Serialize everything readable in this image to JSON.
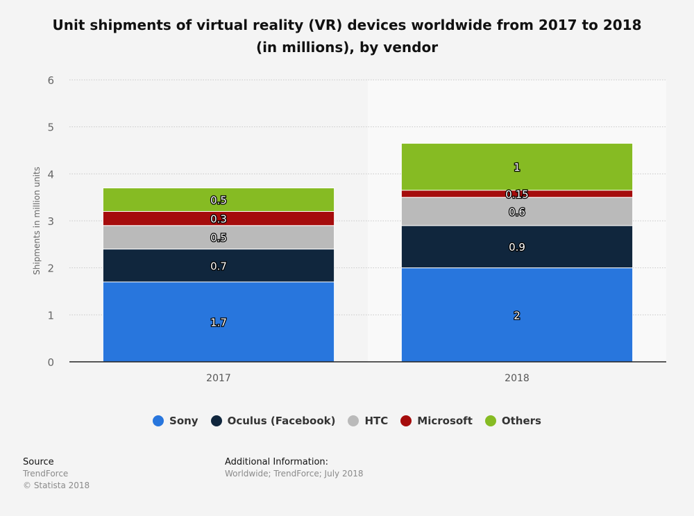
{
  "title": "Unit shipments of virtual reality (VR) devices worldwide from 2017 to 2018 (in millions), by vendor",
  "chart_data": {
    "type": "bar",
    "stacked": true,
    "title": "Unit shipments of virtual reality (VR) devices worldwide from 2017 to 2018 (in millions), by vendor",
    "xlabel": "",
    "ylabel": "Shipments in million units",
    "ylim": [
      0,
      6
    ],
    "yticks": [
      0,
      1,
      2,
      3,
      4,
      5,
      6
    ],
    "grid": true,
    "legend_position": "bottom",
    "categories": [
      "2017",
      "2018"
    ],
    "series": [
      {
        "name": "Sony",
        "color": "#2876dd",
        "values": [
          1.7,
          2
        ],
        "labels": [
          "1.7",
          "2"
        ]
      },
      {
        "name": "Oculus (Facebook)",
        "color": "#10263d",
        "values": [
          0.7,
          0.9
        ],
        "labels": [
          "0.7",
          "0.9"
        ]
      },
      {
        "name": "HTC",
        "color": "#bababa",
        "values": [
          0.5,
          0.6
        ],
        "labels": [
          "0.5",
          "0.6"
        ]
      },
      {
        "name": "Microsoft",
        "color": "#a50c0c",
        "values": [
          0.3,
          0.15
        ],
        "labels": [
          "0.3",
          "0.15"
        ]
      },
      {
        "name": "Others",
        "color": "#86bb23",
        "values": [
          0.5,
          1
        ],
        "labels": [
          "0.5",
          "1"
        ]
      }
    ]
  },
  "footer": {
    "source_label": "Source",
    "source": "TrendForce",
    "copyright": "© Statista 2018",
    "additional_label": "Additional Information:",
    "additional": "Worldwide; TrendForce; July 2018"
  }
}
